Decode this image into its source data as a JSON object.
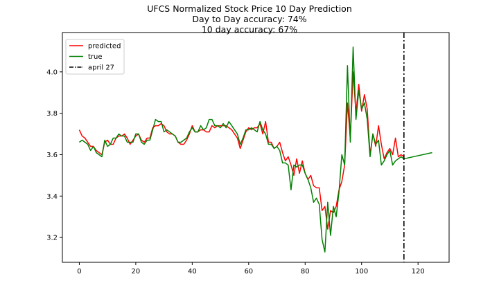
{
  "chart_data": {
    "type": "line",
    "title_lines": [
      "UFCS Normalized Stock Price 10 Day Prediction",
      "Day to Day accuracy: 74%",
      "10 day accuracy: 67%"
    ],
    "xlabel": "",
    "ylabel": "",
    "xlim": [
      -6,
      131
    ],
    "ylim": [
      3.08,
      4.19
    ],
    "xticks": [
      0,
      20,
      40,
      60,
      80,
      100,
      120
    ],
    "yticks": [
      3.2,
      3.4,
      3.6,
      3.8,
      4.0
    ],
    "ytick_labels": [
      "3.2",
      "3.4",
      "3.6",
      "3.8",
      "4.0"
    ],
    "grid": false,
    "legend_position": "upper-left",
    "vline": {
      "x": 115,
      "label": "april 27",
      "color": "#000000",
      "style": "dash-dot"
    },
    "series": [
      {
        "name": "predicted",
        "color": "#ff0000",
        "x": [
          0,
          1,
          2,
          3,
          4,
          5,
          6,
          7,
          8,
          9,
          10,
          11,
          12,
          13,
          14,
          15,
          16,
          17,
          18,
          19,
          20,
          21,
          22,
          23,
          24,
          25,
          26,
          27,
          28,
          29,
          30,
          31,
          32,
          33,
          34,
          35,
          36,
          37,
          38,
          39,
          40,
          41,
          42,
          43,
          44,
          45,
          46,
          47,
          48,
          49,
          50,
          51,
          52,
          53,
          54,
          55,
          56,
          57,
          58,
          59,
          60,
          61,
          62,
          63,
          64,
          65,
          66,
          67,
          68,
          69,
          70,
          71,
          72,
          73,
          74,
          75,
          76,
          77,
          78,
          79,
          80,
          81,
          82,
          83,
          84,
          85,
          86,
          87,
          88,
          89,
          90,
          91,
          92,
          93,
          94,
          95,
          96,
          97,
          98,
          99,
          100,
          101,
          102,
          103,
          104,
          105,
          106,
          107,
          108,
          109,
          110,
          111,
          112,
          113,
          114,
          115
        ],
        "values": [
          3.72,
          3.69,
          3.68,
          3.66,
          3.64,
          3.64,
          3.62,
          3.61,
          3.6,
          3.66,
          3.67,
          3.65,
          3.65,
          3.68,
          3.69,
          3.69,
          3.7,
          3.68,
          3.65,
          3.67,
          3.69,
          3.7,
          3.67,
          3.66,
          3.68,
          3.68,
          3.73,
          3.74,
          3.74,
          3.75,
          3.74,
          3.71,
          3.7,
          3.7,
          3.69,
          3.66,
          3.65,
          3.65,
          3.67,
          3.7,
          3.74,
          3.71,
          3.71,
          3.72,
          3.72,
          3.71,
          3.71,
          3.74,
          3.73,
          3.74,
          3.74,
          3.74,
          3.74,
          3.73,
          3.72,
          3.7,
          3.68,
          3.63,
          3.67,
          3.71,
          3.73,
          3.72,
          3.73,
          3.73,
          3.75,
          3.7,
          3.76,
          3.66,
          3.66,
          3.63,
          3.64,
          3.66,
          3.61,
          3.57,
          3.59,
          3.55,
          3.5,
          3.58,
          3.51,
          3.57,
          3.51,
          3.48,
          3.5,
          3.45,
          3.44,
          3.44,
          3.33,
          3.35,
          3.24,
          3.33,
          3.32,
          3.35,
          3.43,
          3.47,
          3.55,
          3.85,
          3.68,
          4.0,
          3.8,
          3.94,
          3.81,
          3.89,
          3.82,
          3.6,
          3.7,
          3.64,
          3.74,
          3.65,
          3.58,
          3.61,
          3.63,
          3.6,
          3.68,
          3.59,
          3.6,
          3.59
        ]
      },
      {
        "name": "true",
        "color": "#008000",
        "x": [
          0,
          1,
          2,
          3,
          4,
          5,
          6,
          7,
          8,
          9,
          10,
          11,
          12,
          13,
          14,
          15,
          16,
          17,
          18,
          19,
          20,
          21,
          22,
          23,
          24,
          25,
          26,
          27,
          28,
          29,
          30,
          31,
          32,
          33,
          34,
          35,
          36,
          37,
          38,
          39,
          40,
          41,
          42,
          43,
          44,
          45,
          46,
          47,
          48,
          49,
          50,
          51,
          52,
          53,
          54,
          55,
          56,
          57,
          58,
          59,
          60,
          61,
          62,
          63,
          64,
          65,
          66,
          67,
          68,
          69,
          70,
          71,
          72,
          73,
          74,
          75,
          76,
          77,
          78,
          79,
          80,
          81,
          82,
          83,
          84,
          85,
          86,
          87,
          88,
          89,
          90,
          91,
          92,
          93,
          94,
          95,
          96,
          97,
          98,
          99,
          100,
          101,
          102,
          103,
          104,
          105,
          106,
          107,
          108,
          109,
          110,
          111,
          112,
          113,
          114,
          115,
          125
        ],
        "values": [
          3.66,
          3.67,
          3.66,
          3.65,
          3.62,
          3.64,
          3.61,
          3.6,
          3.59,
          3.67,
          3.64,
          3.65,
          3.68,
          3.68,
          3.7,
          3.69,
          3.69,
          3.66,
          3.66,
          3.66,
          3.7,
          3.7,
          3.66,
          3.65,
          3.67,
          3.67,
          3.72,
          3.77,
          3.76,
          3.76,
          3.71,
          3.72,
          3.71,
          3.7,
          3.69,
          3.66,
          3.66,
          3.67,
          3.68,
          3.71,
          3.73,
          3.71,
          3.71,
          3.74,
          3.72,
          3.73,
          3.77,
          3.77,
          3.74,
          3.74,
          3.73,
          3.75,
          3.73,
          3.76,
          3.74,
          3.72,
          3.7,
          3.65,
          3.68,
          3.72,
          3.72,
          3.73,
          3.72,
          3.71,
          3.76,
          3.72,
          3.7,
          3.65,
          3.65,
          3.63,
          3.64,
          3.62,
          3.56,
          3.56,
          3.55,
          3.43,
          3.55,
          3.54,
          3.55,
          3.55,
          3.51,
          3.48,
          3.44,
          3.37,
          3.39,
          3.36,
          3.19,
          3.13,
          3.37,
          3.21,
          3.35,
          3.3,
          3.42,
          3.6,
          3.55,
          4.03,
          3.66,
          4.12,
          3.77,
          3.91,
          3.82,
          3.85,
          3.77,
          3.59,
          3.7,
          3.65,
          3.67,
          3.55,
          3.57,
          3.6,
          3.62,
          3.55,
          3.57,
          3.58,
          3.59,
          3.58,
          3.61
        ]
      }
    ]
  }
}
